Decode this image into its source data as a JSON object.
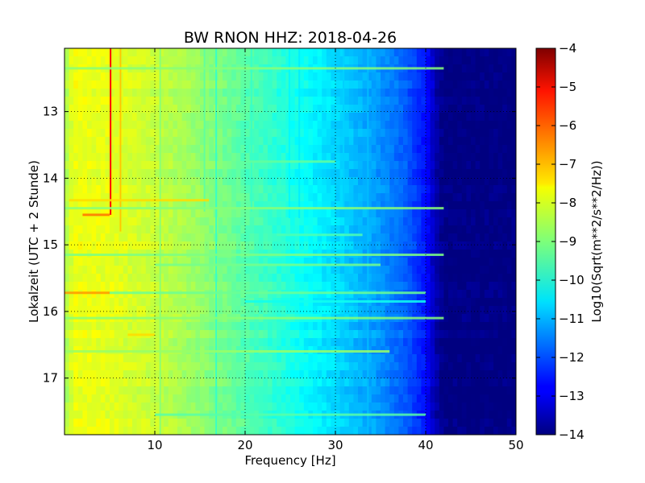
{
  "chart_data": {
    "type": "heatmap",
    "title": "BW RNON HHZ: 2018-04-26",
    "xlabel": "Frequency [Hz]",
    "ylabel": "Lokalzeit (UTC + 2 Stunde)",
    "xlim": [
      0,
      50
    ],
    "ylim": [
      12.05,
      17.85
    ],
    "y_inverted": true,
    "xticks": [
      10,
      20,
      30,
      40,
      50
    ],
    "xtick_labels": [
      "10",
      "20",
      "30",
      "40",
      "50"
    ],
    "yticks": [
      13,
      14,
      15,
      16,
      17
    ],
    "ytick_labels": [
      "13",
      "14",
      "15",
      "16",
      "17"
    ],
    "grid": true,
    "colormap": "jet",
    "colorbar": {
      "label": "Log10(Sqrt(m**2/s**2/Hz))",
      "range": [
        -14,
        -4
      ],
      "ticks": [
        -4,
        -5,
        -6,
        -7,
        -8,
        -9,
        -10,
        -11,
        -12,
        -13,
        -14
      ],
      "tick_labels": [
        "−4",
        "−5",
        "−6",
        "−7",
        "−8",
        "−9",
        "−10",
        "−11",
        "−12",
        "−13",
        "−14"
      ]
    },
    "background_profile": {
      "frequency_hz": [
        0,
        1,
        5,
        10,
        15,
        20,
        25,
        30,
        35,
        38,
        40,
        41,
        42,
        50
      ],
      "level": [
        -8.7,
        -7.9,
        -8.0,
        -8.3,
        -8.8,
        -9.4,
        -10.0,
        -10.6,
        -11.3,
        -11.9,
        -12.6,
        -13.5,
        -14.0,
        -14.0
      ]
    },
    "spectral_lines": [
      {
        "frequency_hz": 5.1,
        "time_range": [
          12.05,
          14.55
        ],
        "level": -5.3
      },
      {
        "frequency_hz": 6.2,
        "time_range": [
          12.05,
          14.8
        ],
        "level": -7.2
      },
      {
        "frequency_hz": 10.6,
        "time_range": [
          12.05,
          17.85
        ],
        "level": -8.9
      },
      {
        "frequency_hz": 15.5,
        "time_range": [
          12.05,
          14.5
        ],
        "level": -9.3
      },
      {
        "frequency_hz": 16.8,
        "time_range": [
          12.05,
          17.85
        ],
        "level": -9.7
      },
      {
        "frequency_hz": 20.7,
        "time_range": [
          12.05,
          14.5
        ],
        "level": -9.7
      },
      {
        "frequency_hz": 24.9,
        "time_range": [
          12.05,
          14.6
        ],
        "level": -10.3
      },
      {
        "frequency_hz": 26.0,
        "time_range": [
          12.05,
          14.6
        ],
        "level": -10.4
      },
      {
        "frequency_hz": 30.9,
        "time_range": [
          12.05,
          14.45
        ],
        "level": -10.7
      },
      {
        "frequency_hz": 33.6,
        "time_range": [
          12.05,
          17.85
        ],
        "level": -10.9
      }
    ],
    "events": [
      {
        "time": 12.35,
        "frequency_range": [
          0,
          42
        ],
        "level_offset": 0.6
      },
      {
        "time": 13.75,
        "frequency_range": [
          20,
          30
        ],
        "level_offset": 0.7
      },
      {
        "time": 14.33,
        "frequency_range": [
          0.5,
          16
        ],
        "level_offset": 0.8
      },
      {
        "time": 14.45,
        "frequency_range": [
          0,
          42
        ],
        "level_offset": 0.6
      },
      {
        "time": 14.55,
        "frequency_range": [
          2,
          5
        ],
        "level_offset": 1.6
      },
      {
        "time": 14.85,
        "frequency_range": [
          23.5,
          33
        ],
        "level_offset": 0.9
      },
      {
        "time": 15.15,
        "frequency_range": [
          0,
          42
        ],
        "level_offset": 0.5
      },
      {
        "time": 15.3,
        "frequency_range": [
          10,
          35
        ],
        "level_offset": 0.6
      },
      {
        "time": 15.72,
        "frequency_range": [
          0,
          5
        ],
        "level_offset": 1.2
      },
      {
        "time": 15.72,
        "frequency_range": [
          5,
          40
        ],
        "level_offset": 0.5
      },
      {
        "time": 15.85,
        "frequency_range": [
          20,
          40
        ],
        "level_offset": 0.5
      },
      {
        "time": 16.1,
        "frequency_range": [
          0,
          42
        ],
        "level_offset": 0.6
      },
      {
        "time": 16.35,
        "frequency_range": [
          7,
          10
        ],
        "level_offset": 0.8
      },
      {
        "time": 16.6,
        "frequency_range": [
          0,
          36
        ],
        "level_offset": 0.4
      },
      {
        "time": 17.55,
        "frequency_range": [
          10,
          40
        ],
        "level_offset": 0.6
      }
    ]
  }
}
